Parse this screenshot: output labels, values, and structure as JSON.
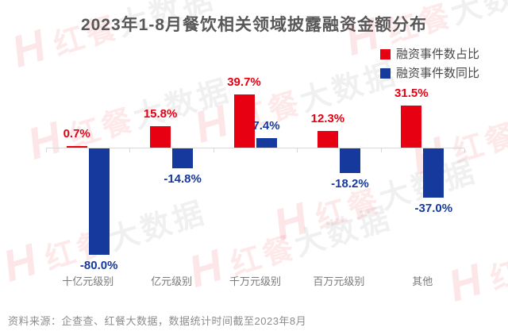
{
  "title": "2023年1-8月餐饮相关领域披露融资金额分布",
  "chart_data": {
    "type": "bar",
    "title": "2023年1-8月餐饮相关领域披露融资金额分布",
    "categories": [
      "十亿元级别",
      "亿元级别",
      "千万元级别",
      "百万元级别",
      "其他"
    ],
    "series": [
      {
        "name": "融资事件数占比",
        "color": "#e60012",
        "values": [
          0.7,
          15.8,
          39.7,
          12.3,
          31.5
        ],
        "labels": [
          "0.7%",
          "15.8%",
          "39.7%",
          "12.3%",
          "31.5%"
        ]
      },
      {
        "name": "融资事件数同比",
        "color": "#16399d",
        "values": [
          -80.0,
          -14.8,
          7.4,
          -18.2,
          -37.0
        ],
        "labels": [
          "-80.0%",
          "-14.8%",
          "7.4%",
          "-18.2%",
          "-37.0%"
        ]
      }
    ],
    "unit": "%",
    "xlabel": "",
    "ylabel": "",
    "ylim": [
      -85,
      45
    ],
    "grid": false,
    "baseline": 0,
    "legend_position": "top-right"
  },
  "watermark": {
    "logo": "H",
    "brand_red": "红餐",
    "brand_gray": "大数据"
  },
  "source": "资料来源：企查查、红餐大数据，数据统计时间截至2023年8月"
}
